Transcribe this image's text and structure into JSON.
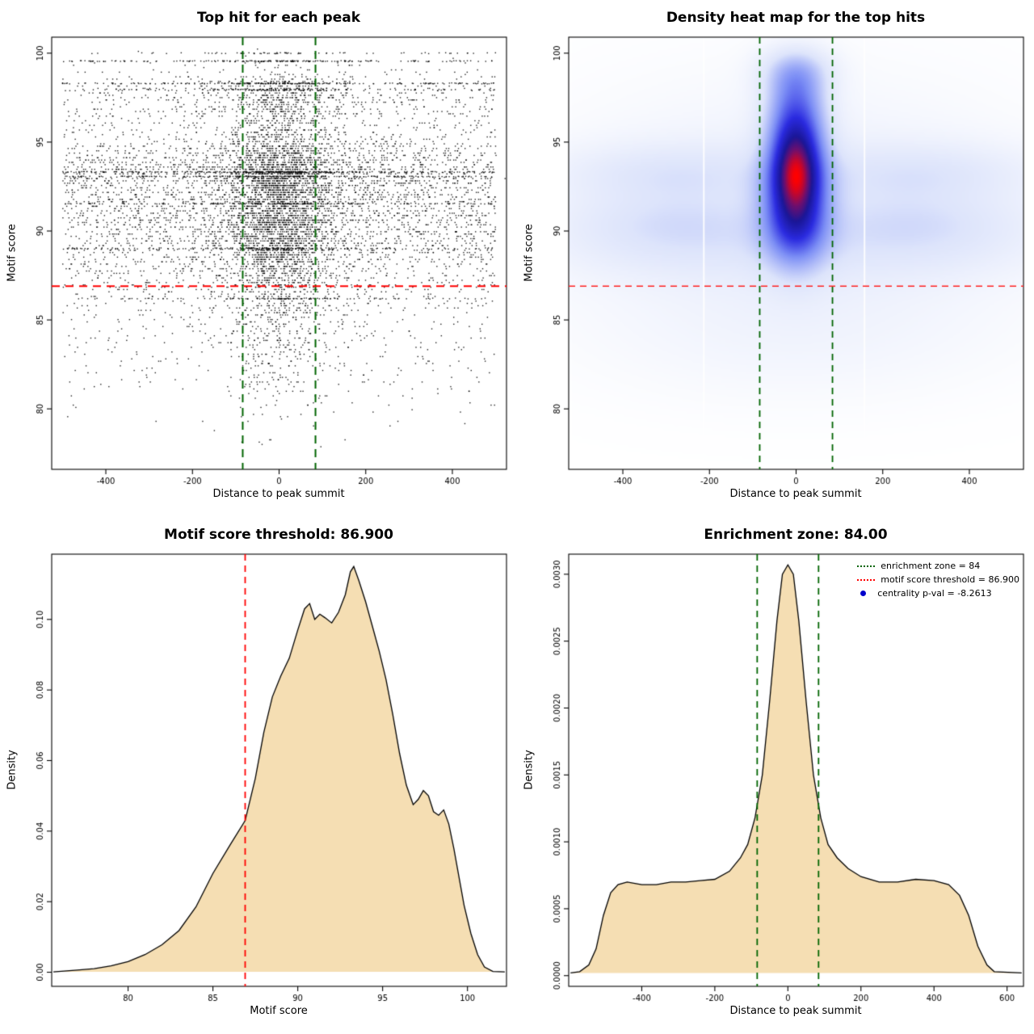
{
  "page": {
    "background": "#ffffff"
  },
  "chart_data": [
    {
      "type": "scatter",
      "title": "Top hit for each peak",
      "xlabel": "Distance to peak summit",
      "ylabel": "Motif score",
      "xlim": [
        -525,
        525
      ],
      "ylim": [
        76.6,
        100.9
      ],
      "xticks": [
        -400,
        -200,
        0,
        200,
        400
      ],
      "xtick_labels": [
        "-400",
        "-200",
        "0",
        "200",
        "400"
      ],
      "yticks": [
        80,
        85,
        90,
        95,
        100
      ],
      "ytick_labels": [
        "80",
        "85",
        "90",
        "95",
        "100"
      ],
      "point_color": "#000000",
      "hline": {
        "y": 86.9,
        "color": "#ff0000",
        "dash": [
          10,
          7
        ],
        "width": 1.8
      },
      "vlines": {
        "x": [
          -84,
          84
        ],
        "color": "#006400",
        "dash": [
          10,
          7
        ],
        "width": 2
      },
      "points": {
        "seed": 42,
        "n": 8200,
        "x_mix": [
          {
            "type": "uniform",
            "a": -500,
            "b": 500,
            "w": 0.52
          },
          {
            "type": "normal",
            "mu": 0,
            "sd": 55,
            "w": 0.36
          },
          {
            "type": "normal",
            "mu": 0,
            "sd": 150,
            "w": 0.12
          }
        ],
        "y_mix": [
          {
            "mu": 93.2,
            "sd": 1.1,
            "w": 0.26
          },
          {
            "mu": 90.7,
            "sd": 1.4,
            "w": 0.28
          },
          {
            "mu": 88.6,
            "sd": 1.6,
            "w": 0.16
          },
          {
            "mu": 95.2,
            "sd": 1.3,
            "w": 0.1
          },
          {
            "mu": 97.6,
            "sd": 0.9,
            "w": 0.09
          },
          {
            "mu": 85.5,
            "sd": 2.2,
            "w": 0.08
          },
          {
            "mu": 82.5,
            "sd": 2.0,
            "w": 0.03
          }
        ],
        "y_range": [
          77.1,
          100.55
        ],
        "y_quant": 0.13,
        "stripe_x": {
          "uniform_w": 0.62,
          "a": -500,
          "b": 500,
          "sd": 75
        },
        "stripe_jitter": 0.06,
        "stripes": [
          {
            "y": 100.0,
            "n": 70
          },
          {
            "y": 99.55,
            "n": 200
          },
          {
            "y": 98.3,
            "n": 240
          },
          {
            "y": 97.95,
            "n": 150
          },
          {
            "y": 93.3,
            "n": 300
          },
          {
            "y": 93.05,
            "n": 190
          },
          {
            "y": 91.55,
            "n": 150
          },
          {
            "y": 89.0,
            "n": 200
          },
          {
            "y": 86.2,
            "n": 110
          }
        ]
      }
    },
    {
      "type": "heatmap",
      "title": "Density heat map for the top hits",
      "xlabel": "Distance to peak summit",
      "ylabel": "Motif score",
      "xlim": [
        -525,
        525
      ],
      "ylim": [
        76.6,
        100.9
      ],
      "xticks": [
        -400,
        -200,
        0,
        200,
        400
      ],
      "xtick_labels": [
        "-400",
        "-200",
        "0",
        "200",
        "400"
      ],
      "yticks": [
        80,
        85,
        90,
        95,
        100
      ],
      "ytick_labels": [
        "80",
        "85",
        "90",
        "95",
        "100"
      ],
      "hline": {
        "y": 86.9,
        "color": "#ff2222",
        "dash": [
          8,
          6
        ],
        "width": 1.5
      },
      "vlines": {
        "x": [
          -84,
          84
        ],
        "color": "#006400",
        "dash": [
          8,
          6
        ],
        "width": 1.8
      },
      "gamma": 0.75,
      "colormap": [
        [
          0,
          "#ffffff"
        ],
        [
          0.22,
          "#dde4fb"
        ],
        [
          0.45,
          "#7b8df5"
        ],
        [
          0.63,
          "#2a2ae0"
        ],
        [
          0.78,
          "#1a1696"
        ],
        [
          0.88,
          "#6e0f6e"
        ],
        [
          1,
          "#ff0000"
        ]
      ],
      "white_gaps": [
        -213,
        158
      ],
      "blobs": [
        {
          "x": 0,
          "y": 93.3,
          "sx": 38,
          "sy": 1.6,
          "a": 1.0
        },
        {
          "x": 0,
          "y": 92.2,
          "sx": 55,
          "sy": 2.6,
          "a": 0.5
        },
        {
          "x": 0,
          "y": 90.3,
          "sx": 46,
          "sy": 1.5,
          "a": 0.42
        },
        {
          "x": 0,
          "y": 95.6,
          "sx": 42,
          "sy": 1.2,
          "a": 0.4
        },
        {
          "x": 0,
          "y": 97.6,
          "sx": 46,
          "sy": 1.3,
          "a": 0.45
        },
        {
          "x": 0,
          "y": 99.1,
          "sx": 55,
          "sy": 0.9,
          "a": 0.25
        },
        {
          "x": -300,
          "y": 93.2,
          "sx": 180,
          "sy": 1.2,
          "a": 0.17
        },
        {
          "x": 300,
          "y": 93.2,
          "sx": 180,
          "sy": 1.2,
          "a": 0.17
        },
        {
          "x": -300,
          "y": 90.6,
          "sx": 180,
          "sy": 1.1,
          "a": 0.13
        },
        {
          "x": 300,
          "y": 90.6,
          "sx": 180,
          "sy": 1.1,
          "a": 0.13
        },
        {
          "x": -280,
          "y": 89.0,
          "sx": 210,
          "sy": 1.3,
          "a": 0.11
        },
        {
          "x": 280,
          "y": 89.0,
          "sx": 210,
          "sy": 1.3,
          "a": 0.11
        },
        {
          "x": 0,
          "y": 92.0,
          "sx": 340,
          "sy": 4.2,
          "a": 0.1
        },
        {
          "x": 0,
          "y": 86.0,
          "sx": 340,
          "sy": 2.4,
          "a": 0.05
        },
        {
          "x": 0,
          "y": 83.0,
          "sx": 300,
          "sy": 2.2,
          "a": 0.03
        }
      ]
    },
    {
      "type": "area",
      "title": "Motif score threshold: 86.900",
      "xlabel": "Motif score",
      "ylabel": "Density",
      "xlim": [
        75.5,
        102.3
      ],
      "ylim": [
        -0.004,
        0.1185
      ],
      "xticks": [
        80,
        85,
        90,
        95,
        100
      ],
      "xtick_labels": [
        "80",
        "85",
        "90",
        "95",
        "100"
      ],
      "yticks": [
        0,
        0.02,
        0.04,
        0.06,
        0.08,
        0.1
      ],
      "ytick_labels": [
        "0.00",
        "0.02",
        "0.04",
        "0.06",
        "0.08",
        "0.10"
      ],
      "fill": "#f5deb3",
      "stroke": "#000000",
      "vlines": {
        "x": [
          86.9
        ],
        "color": "#ff0000",
        "dash": [
          8,
          6
        ],
        "width": 1.8
      },
      "curve": [
        [
          75.6,
          0.0001
        ],
        [
          77,
          0.0006
        ],
        [
          78,
          0.001
        ],
        [
          79,
          0.0018
        ],
        [
          80,
          0.003
        ],
        [
          81,
          0.005
        ],
        [
          82,
          0.0078
        ],
        [
          83,
          0.0118
        ],
        [
          84,
          0.0185
        ],
        [
          85,
          0.028
        ],
        [
          86,
          0.036
        ],
        [
          86.9,
          0.043
        ],
        [
          87.5,
          0.055
        ],
        [
          88,
          0.068
        ],
        [
          88.5,
          0.078
        ],
        [
          89,
          0.084
        ],
        [
          89.5,
          0.089
        ],
        [
          90,
          0.097
        ],
        [
          90.4,
          0.103
        ],
        [
          90.7,
          0.1045
        ],
        [
          91,
          0.1
        ],
        [
          91.3,
          0.1015
        ],
        [
          91.6,
          0.1005
        ],
        [
          92,
          0.099
        ],
        [
          92.4,
          0.102
        ],
        [
          92.8,
          0.107
        ],
        [
          93.1,
          0.1135
        ],
        [
          93.3,
          0.115
        ],
        [
          93.6,
          0.111
        ],
        [
          94,
          0.105
        ],
        [
          94.4,
          0.098
        ],
        [
          94.8,
          0.091
        ],
        [
          95.2,
          0.083
        ],
        [
          95.6,
          0.073
        ],
        [
          96,
          0.062
        ],
        [
          96.4,
          0.053
        ],
        [
          96.8,
          0.0475
        ],
        [
          97.1,
          0.049
        ],
        [
          97.4,
          0.0515
        ],
        [
          97.7,
          0.05
        ],
        [
          98,
          0.0455
        ],
        [
          98.3,
          0.0445
        ],
        [
          98.6,
          0.046
        ],
        [
          98.9,
          0.042
        ],
        [
          99.2,
          0.035
        ],
        [
          99.5,
          0.027
        ],
        [
          99.8,
          0.019
        ],
        [
          100.2,
          0.011
        ],
        [
          100.6,
          0.005
        ],
        [
          101,
          0.0015
        ],
        [
          101.5,
          0.0002
        ],
        [
          102.2,
          0.0001
        ]
      ]
    },
    {
      "type": "area",
      "title": "Enrichment zone: 84.00",
      "xlabel": "Distance to peak summit",
      "ylabel": "Density",
      "xlim": [
        -600,
        645
      ],
      "ylim": [
        -8e-05,
        0.00315
      ],
      "xticks": [
        -400,
        -200,
        0,
        200,
        400,
        600
      ],
      "xtick_labels": [
        "-400",
        "-200",
        "0",
        "200",
        "400",
        "600"
      ],
      "yticks": [
        0,
        0.0005,
        0.001,
        0.0015,
        0.002,
        0.0025,
        0.003
      ],
      "ytick_labels": [
        "0.0000",
        "0.0005",
        "0.0010",
        "0.0015",
        "0.0020",
        "0.0025",
        "0.0030"
      ],
      "fill": "#f5deb3",
      "stroke": "#000000",
      "vlines": {
        "x": [
          -84,
          84
        ],
        "color": "#006400",
        "dash": [
          8,
          6
        ],
        "width": 1.8
      },
      "curve": [
        [
          -595,
          2e-05
        ],
        [
          -570,
          3e-05
        ],
        [
          -545,
          8e-05
        ],
        [
          -525,
          0.0002
        ],
        [
          -505,
          0.00045
        ],
        [
          -485,
          0.00062
        ],
        [
          -465,
          0.00068
        ],
        [
          -440,
          0.0007
        ],
        [
          -400,
          0.00068
        ],
        [
          -360,
          0.00068
        ],
        [
          -320,
          0.0007
        ],
        [
          -280,
          0.0007
        ],
        [
          -240,
          0.00071
        ],
        [
          -200,
          0.00072
        ],
        [
          -160,
          0.00078
        ],
        [
          -130,
          0.00088
        ],
        [
          -110,
          0.00098
        ],
        [
          -90,
          0.00118
        ],
        [
          -70,
          0.0015
        ],
        [
          -50,
          0.00205
        ],
        [
          -30,
          0.00265
        ],
        [
          -15,
          0.003
        ],
        [
          0,
          0.00307
        ],
        [
          15,
          0.003
        ],
        [
          30,
          0.00265
        ],
        [
          50,
          0.00205
        ],
        [
          70,
          0.0015
        ],
        [
          90,
          0.00118
        ],
        [
          110,
          0.00098
        ],
        [
          135,
          0.00088
        ],
        [
          165,
          0.0008
        ],
        [
          200,
          0.00074
        ],
        [
          250,
          0.0007
        ],
        [
          300,
          0.0007
        ],
        [
          350,
          0.00072
        ],
        [
          400,
          0.00071
        ],
        [
          440,
          0.00068
        ],
        [
          470,
          0.0006
        ],
        [
          495,
          0.00045
        ],
        [
          520,
          0.00022
        ],
        [
          545,
          8e-05
        ],
        [
          565,
          3e-05
        ],
        [
          640,
          2e-05
        ]
      ],
      "legend": {
        "entries": [
          {
            "label": "enrichment zone = 84",
            "color": "#006400",
            "symbol": "dotted-line"
          },
          {
            "label": "motif score threshold = 86.900",
            "color": "#ff0000",
            "symbol": "dotted-line"
          },
          {
            "label": "centrality p-val = -8.2613",
            "color": "#0000cc",
            "symbol": "dot"
          }
        ]
      }
    }
  ]
}
